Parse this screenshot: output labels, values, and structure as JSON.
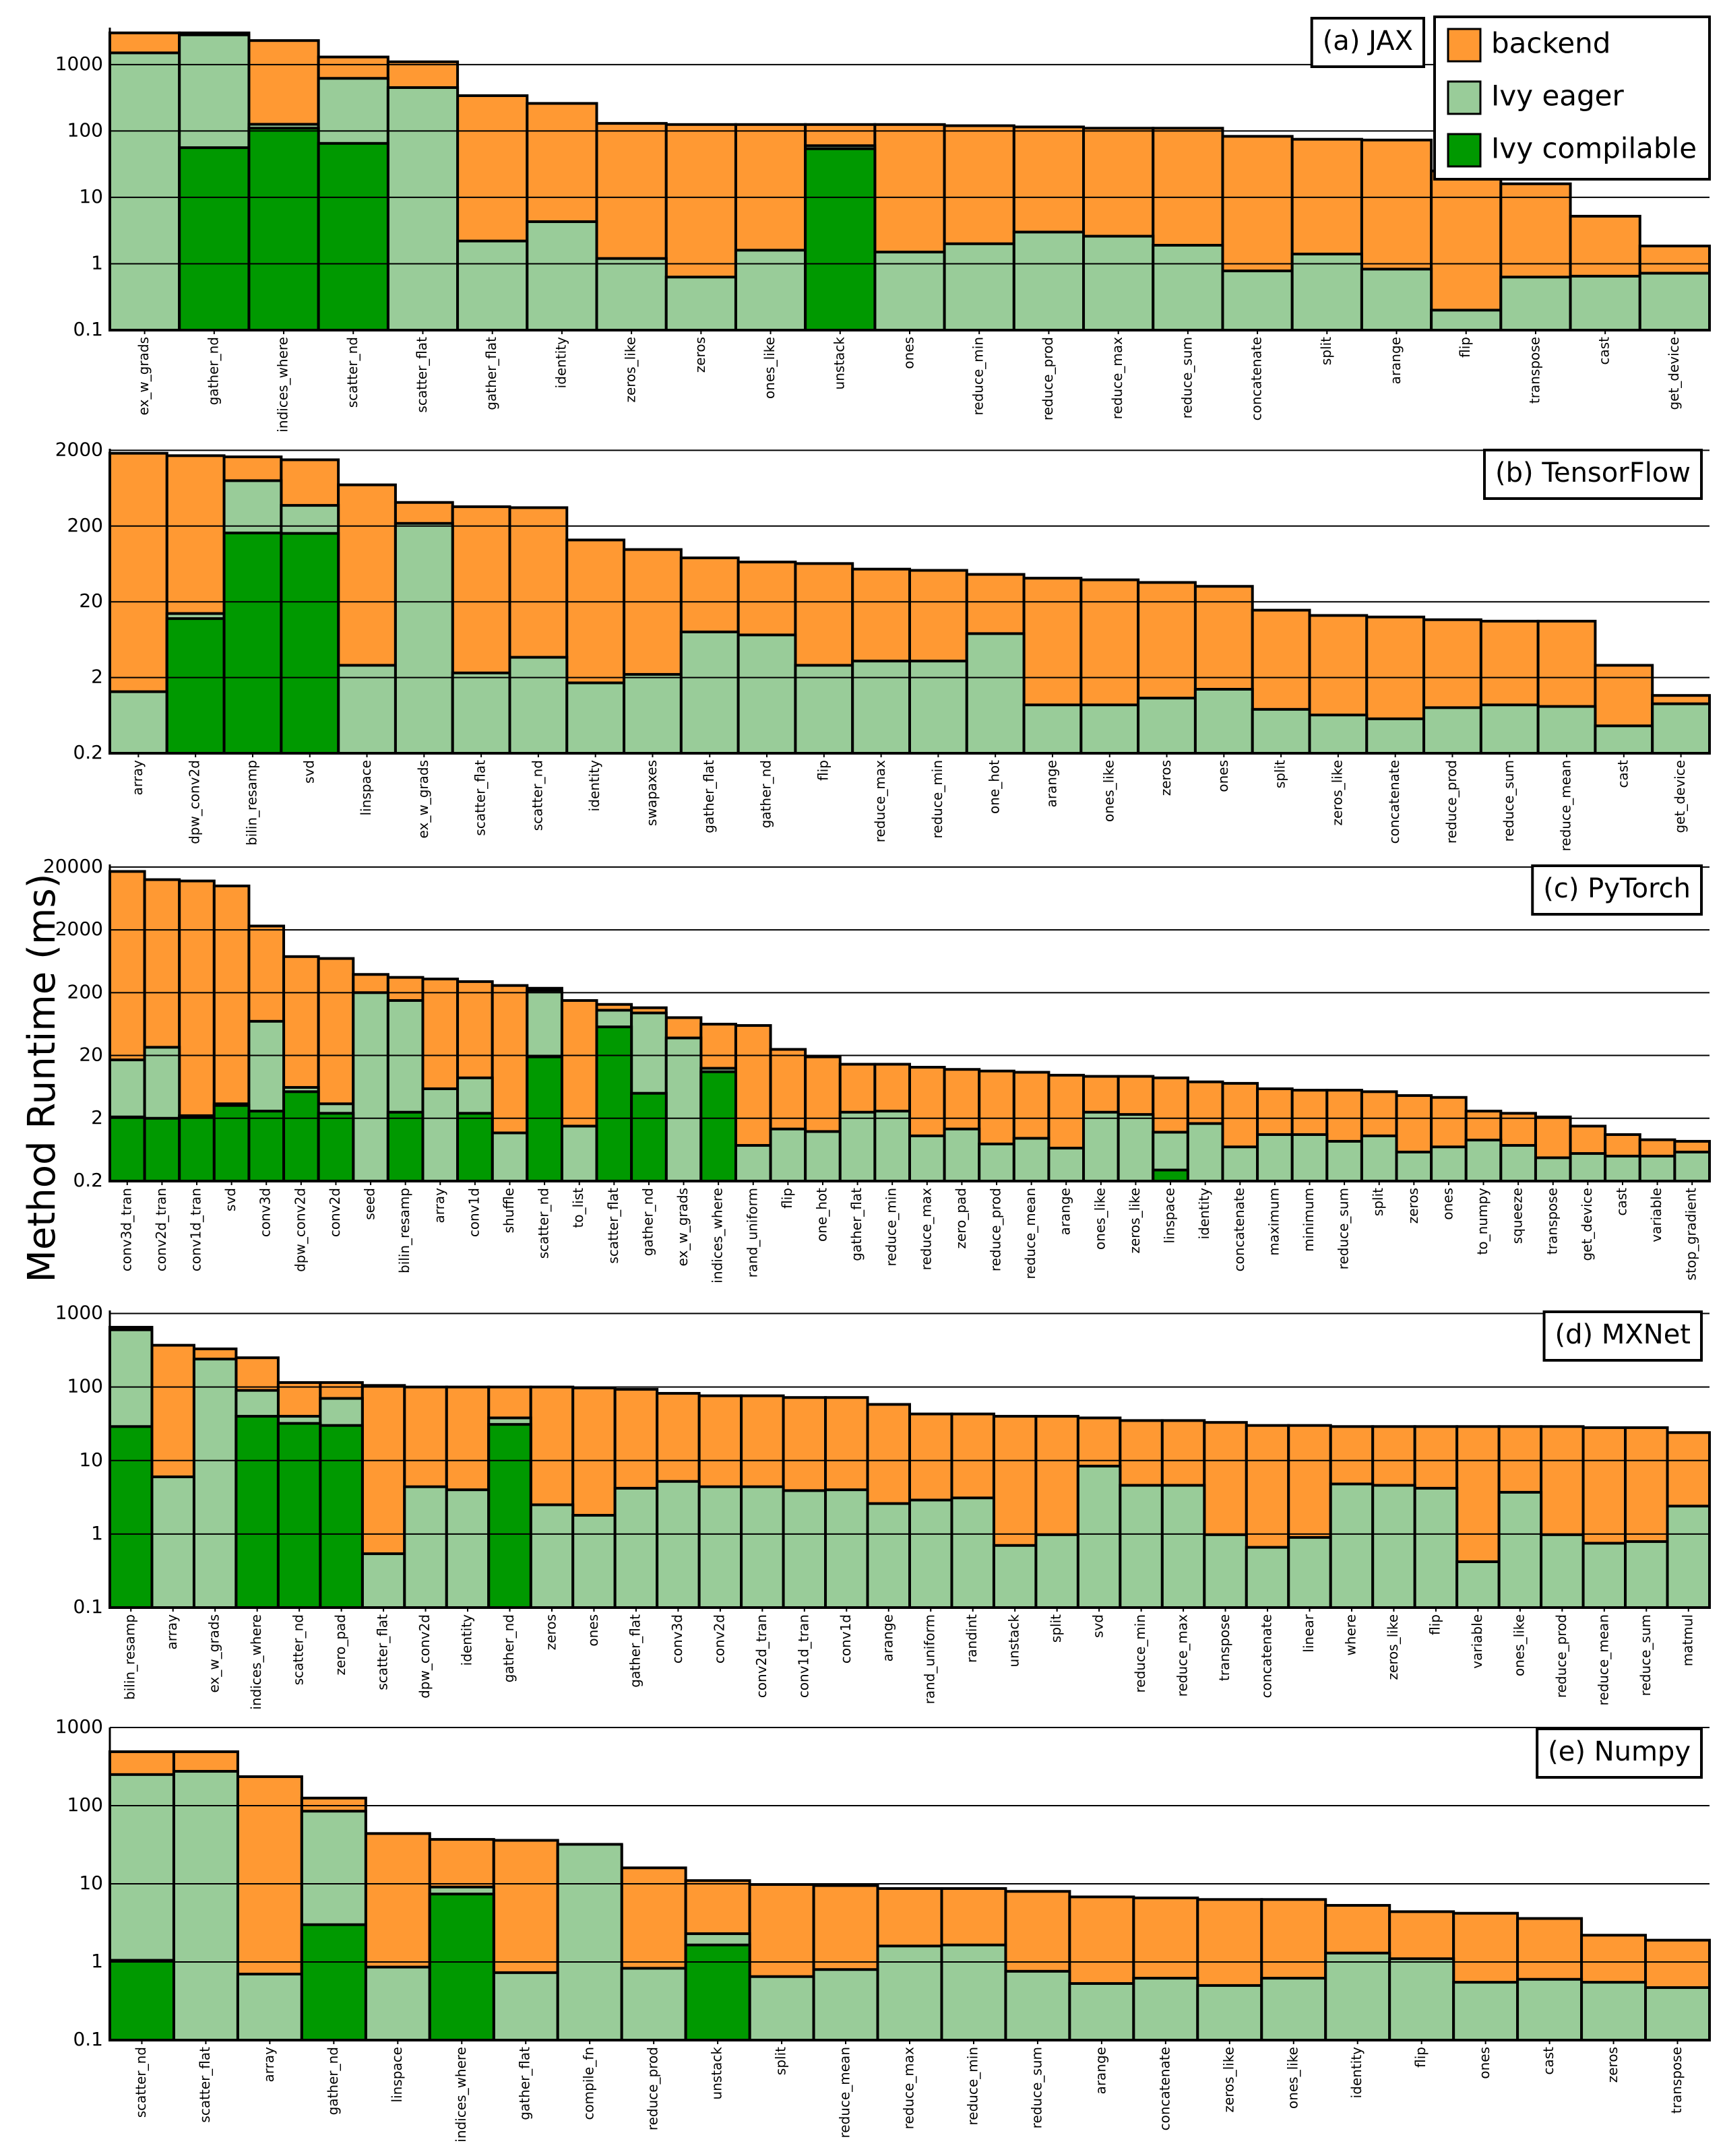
{
  "ylabel": "Method Runtime (ms)",
  "chart_data": [
    {
      "type": "bar",
      "title": "(a) JAX",
      "log_scale": true,
      "grid": true,
      "legend": "upper right",
      "ylim": [
        0.1,
        3600
      ],
      "yticks": [
        0.1,
        1,
        10,
        100,
        1000
      ],
      "categories": [
        "ex_w_grads",
        "gather_nd",
        "indices_where",
        "scatter_nd",
        "scatter_flat",
        "gather_flat",
        "identity",
        "zeros_like",
        "zeros",
        "ones_like",
        "unstack",
        "ones",
        "reduce_min",
        "reduce_prod",
        "reduce_max",
        "reduce_sum",
        "concatenate",
        "split",
        "arange",
        "flip",
        "transpose",
        "cast",
        "get_device"
      ],
      "series": [
        {
          "name": "backend",
          "color": "#ff9933",
          "values": [
            3000,
            3000,
            2300,
            1300,
            1100,
            340,
            260,
            130,
            125,
            125,
            125,
            125,
            120,
            115,
            110,
            110,
            83,
            75,
            73,
            25,
            16,
            5.2,
            1.85
          ]
        },
        {
          "name": "Ivy eager",
          "color": "#99cc99",
          "values": [
            1500,
            2800,
            126,
            620,
            450,
            2.2,
            4.3,
            1.2,
            0.63,
            1.6,
            60,
            1.5,
            2.0,
            3.0,
            2.6,
            1.9,
            0.78,
            1.4,
            0.83,
            0.2,
            0.63,
            0.65,
            0.72
          ]
        },
        {
          "name": "Ivy compilable",
          "color": "#009900",
          "values": [
            null,
            56,
            110,
            65,
            null,
            null,
            null,
            null,
            null,
            null,
            54,
            null,
            null,
            null,
            null,
            null,
            null,
            null,
            null,
            null,
            null,
            null,
            null
          ]
        }
      ]
    },
    {
      "type": "bar",
      "title": "(b) TensorFlow",
      "log_scale": true,
      "grid": true,
      "ylim": [
        0.2,
        2100
      ],
      "yticks": [
        0.2,
        2,
        20,
        200,
        2000
      ],
      "categories": [
        "array",
        "dpw_conv2d",
        "bilin_resamp",
        "svd",
        "linspace",
        "ex_w_grads",
        "scatter_flat",
        "scatter_nd",
        "identity",
        "swapaxes",
        "gather_flat",
        "gather_nd",
        "flip",
        "reduce_max",
        "reduce_min",
        "one_hot",
        "arange",
        "ones_like",
        "zeros",
        "ones",
        "split",
        "zeros_like",
        "concatenate",
        "reduce_prod",
        "reduce_sum",
        "reduce_mean",
        "cast",
        "get_device"
      ],
      "series": [
        {
          "color": "#ff9933",
          "values": [
            1830,
            1700,
            1640,
            1500,
            700,
            410,
            360,
            350,
            131,
            98,
            76,
            67,
            64,
            54,
            52,
            46,
            41,
            39,
            36,
            32,
            15.5,
            13.2,
            12.6,
            11.6,
            11.1,
            11.1,
            2.9,
            1.16
          ]
        },
        {
          "color": "#99cc99",
          "values": [
            1.3,
            14,
            795,
            375,
            2.9,
            217,
            2.3,
            3.7,
            1.7,
            2.2,
            8,
            7.3,
            2.9,
            3.3,
            3.3,
            7.6,
            0.87,
            0.87,
            1.07,
            1.4,
            0.76,
            0.64,
            0.57,
            0.8,
            0.87,
            0.83,
            0.46,
            0.9
          ]
        },
        {
          "color": "#009900",
          "values": [
            null,
            12,
            162,
            160,
            null,
            null,
            null,
            null,
            null,
            null,
            null,
            null,
            null,
            null,
            null,
            null,
            null,
            null,
            null,
            null,
            null,
            null,
            null,
            null,
            null,
            null,
            null,
            null
          ]
        }
      ]
    },
    {
      "type": "bar",
      "title": "(c) PyTorch",
      "log_scale": true,
      "grid": true,
      "ylim": [
        0.2,
        22000
      ],
      "yticks": [
        0.2,
        2,
        20,
        200,
        2000,
        20000
      ],
      "categories": [
        "conv3d_tran",
        "conv2d_tran",
        "conv1d_tran",
        "svd",
        "conv3d",
        "dpw_conv2d",
        "conv2d",
        "seed",
        "bilin_resamp",
        "array",
        "conv1d",
        "shuffle",
        "scatter_nd",
        "to_list",
        "scatter_flat",
        "gather_nd",
        "ex_w_grads",
        "indices_where",
        "rand_uniform",
        "flip",
        "one_hot",
        "gather_flat",
        "reduce_min",
        "reduce_max",
        "zero_pad",
        "reduce_prod",
        "reduce_mean",
        "arange",
        "ones_like",
        "zeros_like",
        "linspace",
        "identity",
        "concatenate",
        "maximum",
        "minimum",
        "reduce_sum",
        "split",
        "zeros",
        "ones",
        "to_numpy",
        "squeeze",
        "transpose",
        "get_device",
        "cast",
        "variable",
        "stop_gradient"
      ],
      "series": [
        {
          "color": "#ff9933",
          "values": [
            17000,
            12600,
            12000,
            10000,
            2300,
            750,
            700,
            390,
            350,
            330,
            300,
            260,
            235,
            150,
            130,
            115,
            80,
            63,
            60,
            25,
            19,
            14.5,
            14.5,
            13,
            12,
            11.3,
            10.8,
            9.7,
            9.3,
            9.3,
            8.8,
            7.6,
            7.2,
            5.9,
            5.6,
            5.6,
            5.3,
            4.6,
            4.3,
            2.6,
            2.4,
            2.1,
            1.5,
            1.1,
            0.91,
            0.86
          ]
        },
        {
          "color": "#99cc99",
          "values": [
            17,
            27,
            2.2,
            3.4,
            70,
            6.2,
            3.4,
            200,
            150,
            5.9,
            8.8,
            1.17,
            215,
            1.5,
            105,
            95,
            38,
            12.5,
            0.74,
            1.35,
            1.23,
            2.5,
            2.6,
            1.05,
            1.35,
            0.78,
            0.96,
            0.67,
            2.5,
            2.3,
            1.2,
            1.65,
            0.7,
            1.1,
            1.1,
            0.86,
            1.05,
            0.58,
            0.7,
            0.9,
            0.74,
            0.47,
            0.55,
            0.5,
            0.5,
            0.58
          ]
        },
        {
          "color": "#009900",
          "values": [
            2.1,
            2.0,
            2.1,
            3.2,
            2.6,
            5.3,
            2.4,
            null,
            2.5,
            null,
            2.4,
            null,
            19,
            null,
            57,
            5,
            null,
            11,
            null,
            null,
            null,
            null,
            null,
            null,
            null,
            null,
            null,
            null,
            null,
            null,
            0.3,
            null,
            null,
            null,
            null,
            null,
            null,
            null,
            null,
            null,
            null,
            null,
            null,
            null,
            null,
            null
          ]
        }
      ]
    },
    {
      "type": "bar",
      "title": "(d) MXNet",
      "log_scale": true,
      "grid": true,
      "ylim": [
        0.1,
        1100
      ],
      "yticks": [
        0.1,
        1,
        10,
        100,
        1000
      ],
      "categories": [
        "bilin_resamp",
        "array",
        "ex_w_grads",
        "indices_where",
        "scatter_nd",
        "zero_pad",
        "scatter_flat",
        "dpw_conv2d",
        "identity",
        "gather_nd",
        "zeros",
        "ones",
        "gather_flat",
        "conv3d",
        "conv2d",
        "conv2d_tran",
        "conv1d_tran",
        "conv1d",
        "arange",
        "rand_uniform",
        "randint",
        "unstack",
        "split",
        "svd",
        "reduce_min",
        "reduce_max",
        "transpose",
        "concatenate",
        "linear",
        "where",
        "zeros_like",
        "flip",
        "variable",
        "ones_like",
        "reduce_prod",
        "reduce_mean",
        "reduce_sum",
        "matmul"
      ],
      "series": [
        {
          "color": "#ff9933",
          "values": [
            650,
            370,
            330,
            250,
            115,
            115,
            105,
            100,
            100,
            100,
            100,
            97,
            93,
            82,
            76,
            76,
            72,
            72,
            58,
            43,
            43,
            40,
            40,
            38,
            35,
            35,
            33,
            30,
            30,
            29,
            29,
            29,
            29,
            29,
            29,
            28,
            28,
            24
          ]
        },
        {
          "color": "#99cc99",
          "values": [
            600,
            6,
            240,
            90,
            40,
            70,
            0.54,
            4.4,
            4,
            38,
            2.5,
            1.8,
            4.2,
            5.2,
            4.4,
            4.4,
            3.9,
            4.0,
            2.6,
            2.9,
            3.1,
            0.7,
            0.98,
            8.4,
            4.6,
            4.6,
            0.98,
            0.66,
            0.9,
            4.8,
            4.6,
            4.2,
            0.42,
            3.7,
            0.98,
            0.75,
            0.79,
            2.4
          ]
        },
        {
          "color": "#009900",
          "values": [
            29,
            null,
            null,
            40,
            32,
            30,
            null,
            null,
            null,
            31,
            null,
            null,
            null,
            null,
            null,
            null,
            null,
            null,
            null,
            null,
            null,
            null,
            null,
            null,
            null,
            null,
            null,
            null,
            null,
            null,
            null,
            null,
            null,
            null,
            null,
            null,
            null,
            null
          ]
        }
      ]
    },
    {
      "type": "bar",
      "title": "(e) Numpy",
      "log_scale": true,
      "grid": true,
      "ylim": [
        0.1,
        1000
      ],
      "yticks": [
        0.1,
        1,
        10,
        100,
        1000
      ],
      "categories": [
        "scatter_nd",
        "scatter_flat",
        "array",
        "gather_nd",
        "linspace",
        "indices_where",
        "gather_flat",
        "compile_fn",
        "reduce_prod",
        "unstack",
        "split",
        "reduce_mean",
        "reduce_max",
        "reduce_min",
        "reduce_sum",
        "arange",
        "concatenate",
        "zeros_like",
        "ones_like",
        "identity",
        "flip",
        "ones",
        "cast",
        "zeros",
        "transpose"
      ],
      "series": [
        {
          "color": "#ff9933",
          "values": [
            490,
            490,
            235,
            125,
            44,
            37,
            36,
            31,
            16,
            11,
            9.8,
            9.5,
            8.7,
            8.7,
            8.0,
            6.8,
            6.6,
            6.3,
            6.3,
            5.3,
            4.4,
            4.2,
            3.6,
            2.2,
            1.9
          ]
        },
        {
          "color": "#99cc99",
          "values": [
            250,
            275,
            0.7,
            85,
            0.86,
            9.1,
            0.73,
            32,
            0.83,
            2.3,
            0.65,
            0.8,
            1.6,
            1.65,
            0.76,
            0.53,
            0.62,
            0.5,
            0.62,
            1.3,
            1.1,
            0.55,
            0.6,
            0.55,
            0.47
          ]
        },
        {
          "color": "#009900",
          "values": [
            1.05,
            null,
            null,
            3,
            null,
            7.4,
            null,
            null,
            null,
            1.65,
            null,
            null,
            null,
            null,
            null,
            null,
            null,
            null,
            null,
            null,
            null,
            null,
            null,
            null,
            null
          ]
        }
      ]
    }
  ]
}
